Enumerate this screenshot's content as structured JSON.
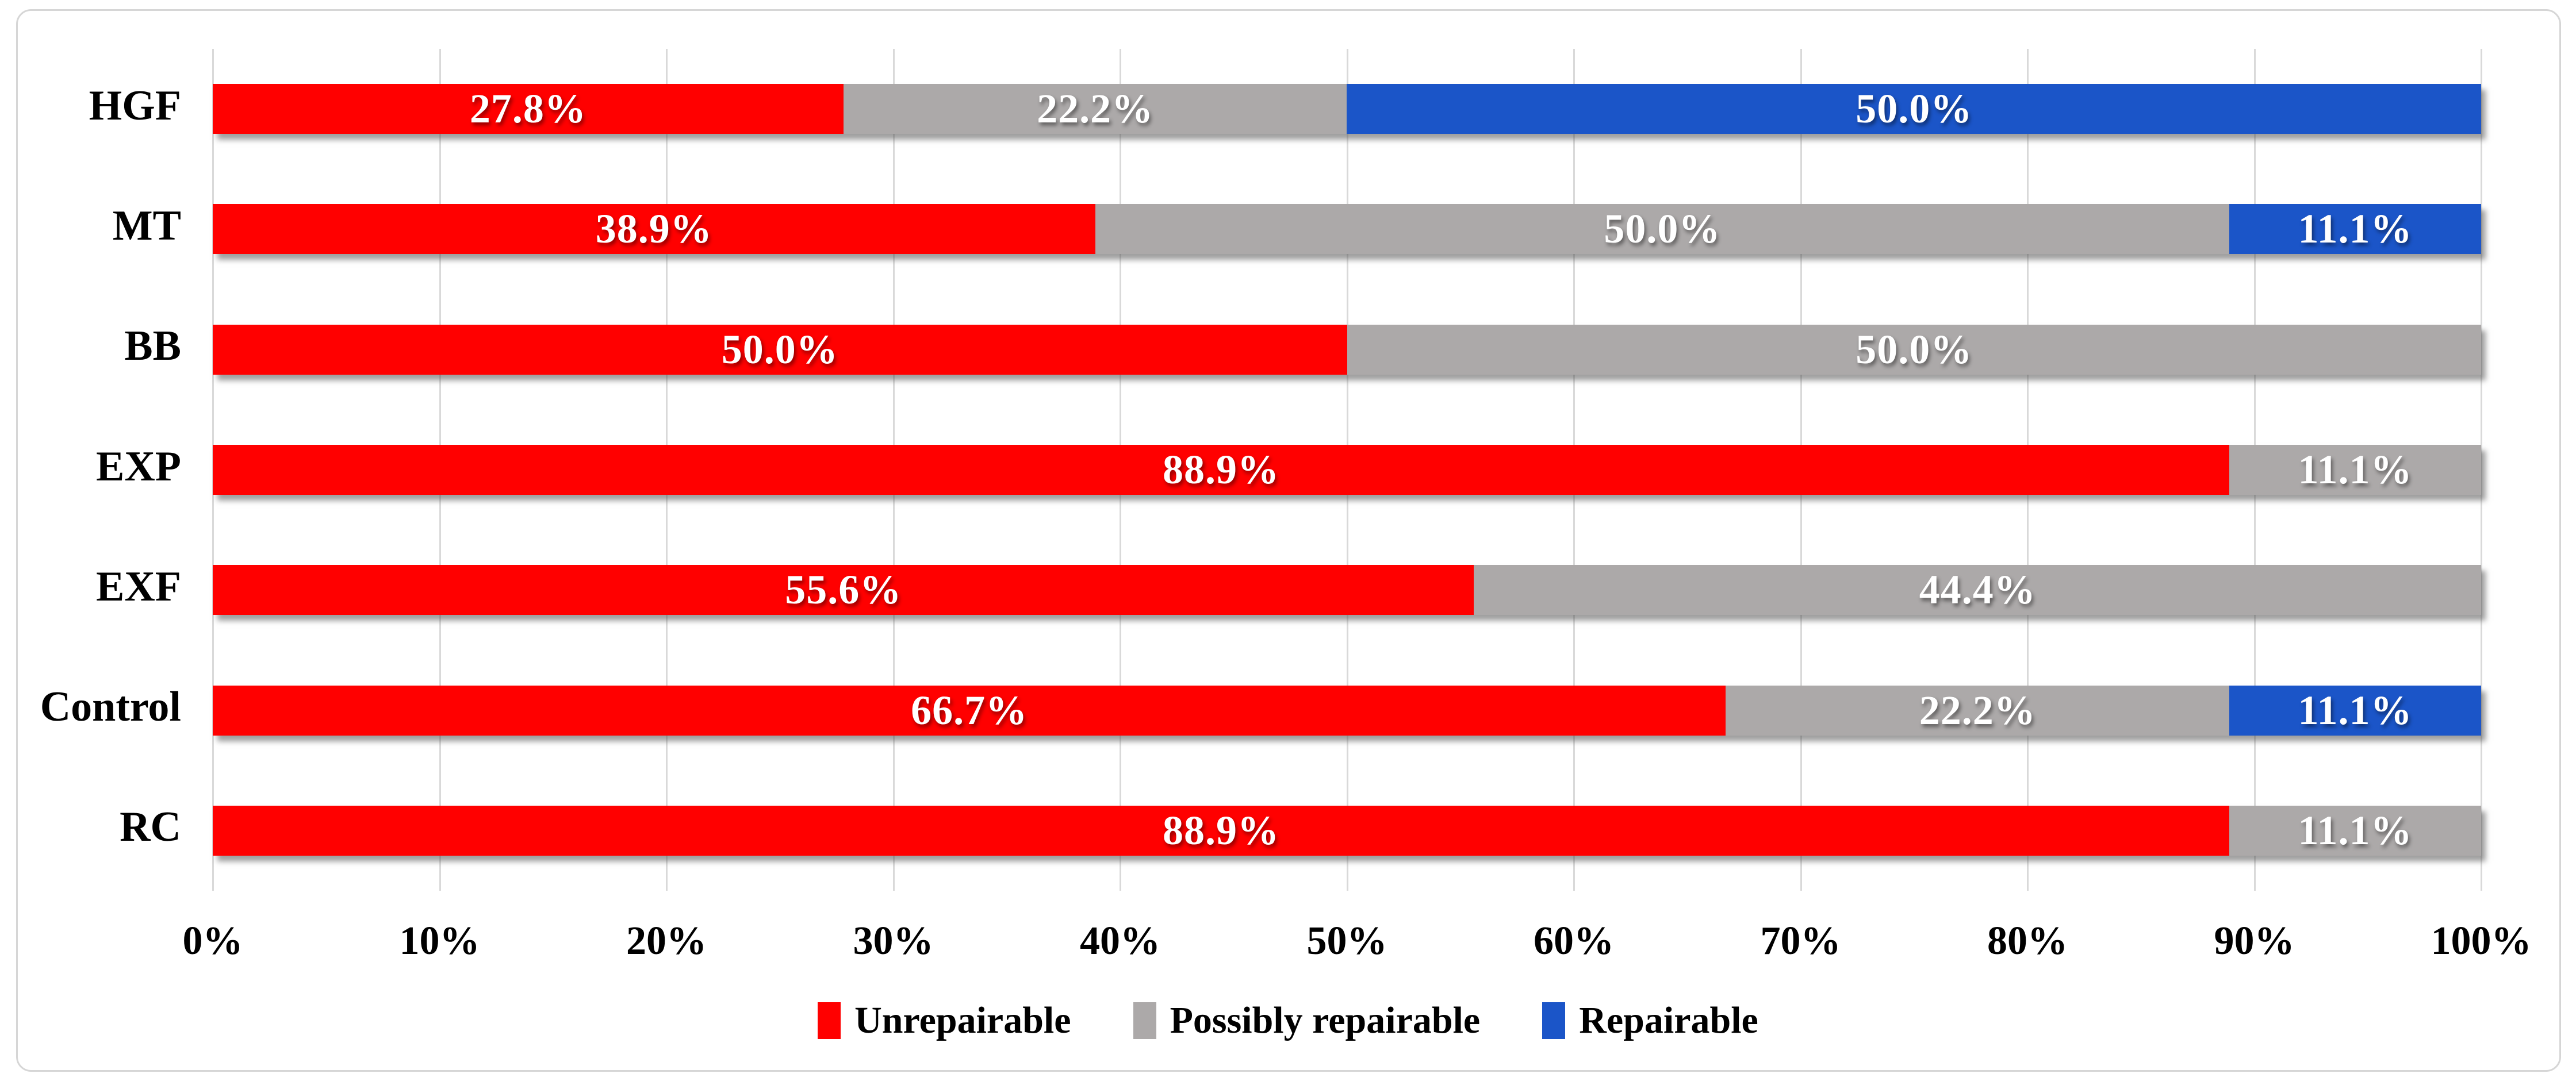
{
  "chart_data": {
    "type": "bar",
    "orientation": "horizontal-stacked",
    "title": "",
    "xlabel": "",
    "ylabel": "",
    "xlim": [
      0,
      100
    ],
    "grid": "vertical",
    "legend_position": "bottom",
    "x_ticks": [
      "0%",
      "10%",
      "20%",
      "30%",
      "40%",
      "50%",
      "60%",
      "70%",
      "80%",
      "90%",
      "100%"
    ],
    "categories": [
      "HGF",
      "MT",
      "BB",
      "EXP",
      "EXF",
      "Control",
      "RC"
    ],
    "series": [
      {
        "name": "Unrepairable",
        "color": "#ff0000",
        "values": [
          27.8,
          38.9,
          50.0,
          88.9,
          55.6,
          66.7,
          88.9
        ],
        "labels": [
          "27.8%",
          "38.9%",
          "50.0%",
          "88.9%",
          "55.6%",
          "66.7%",
          "88.9%"
        ]
      },
      {
        "name": "Possibly repairable",
        "color": "#aca9a9",
        "values": [
          22.2,
          50.0,
          50.0,
          11.1,
          44.4,
          22.2,
          11.1
        ],
        "labels": [
          "22.2%",
          "50.0%",
          "50.0%",
          "11.1%",
          "44.4%",
          "22.2%",
          "11.1%"
        ]
      },
      {
        "name": "Repairable",
        "color": "#1b55c8",
        "values": [
          50.0,
          11.1,
          0,
          0,
          0,
          11.1,
          0
        ],
        "labels": [
          "50.0%",
          "11.1%",
          "",
          "",
          "",
          "11.1%",
          ""
        ]
      }
    ],
    "legend": {
      "items": [
        "Unrepairable",
        "Possibly repairable",
        "Repairable"
      ]
    }
  },
  "colors": {
    "gridline": "#d9d9d9",
    "frame_border": "#d6d6d6",
    "background": "#ffffff",
    "bar_label_text": "#ffffff",
    "axis_text": "#000000"
  }
}
